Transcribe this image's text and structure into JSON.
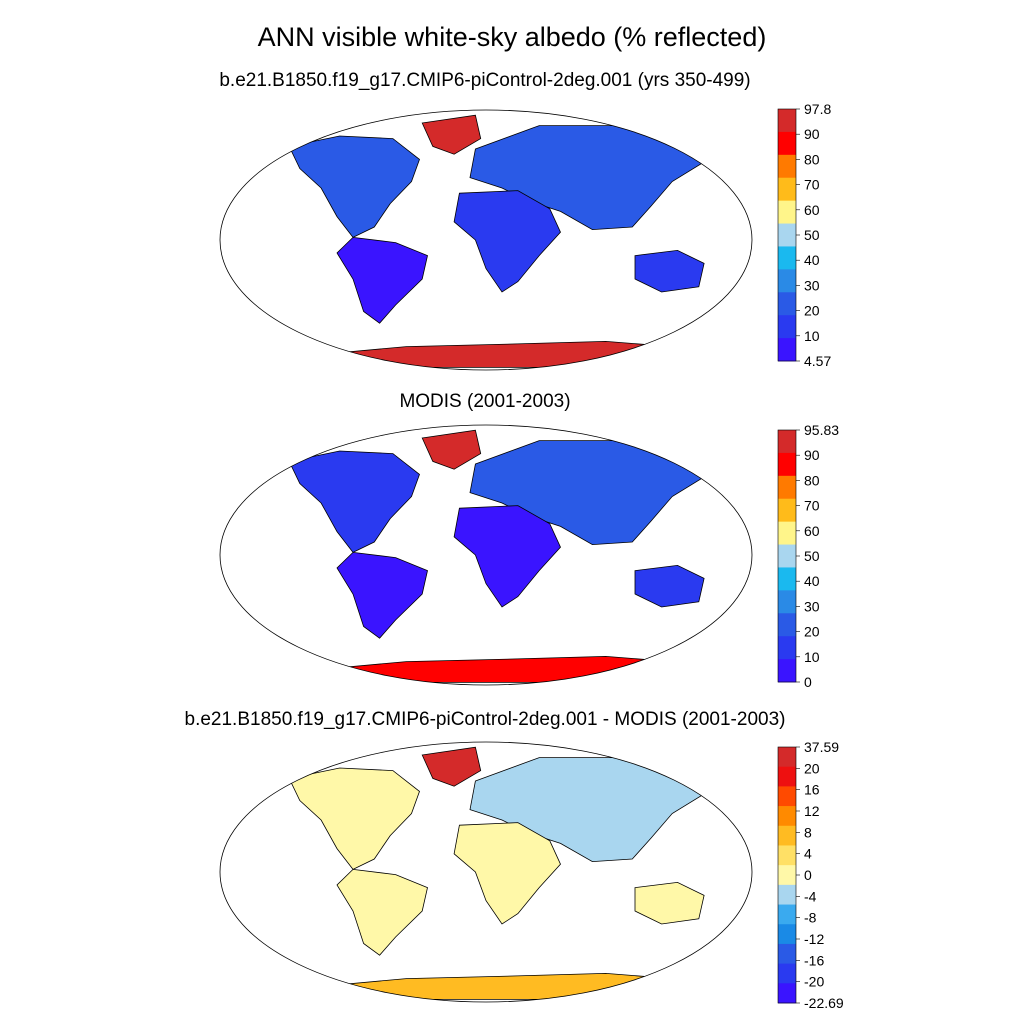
{
  "figure": {
    "title": "ANN visible white-sky albedo (% reflected)"
  },
  "panels": [
    {
      "id": "model",
      "title": "b.e21.B1850.f19_g17.CMIP6-piControl-2deg.001 (yrs 350-499)",
      "colorbar": {
        "labels": [
          "97.8",
          "90",
          "80",
          "70",
          "60",
          "50",
          "40",
          "30",
          "20",
          "10",
          "4.57"
        ],
        "colors": [
          "#d42a2a",
          "#ff0000",
          "#ff7a00",
          "#ffbb1a",
          "#fff58a",
          "#a9d6ef",
          "#1ab9ef",
          "#2a8ae6",
          "#2a5ae6",
          "#2a3af0",
          "#3a14ff"
        ]
      }
    },
    {
      "id": "obs",
      "title": "MODIS (2001-2003)",
      "colorbar": {
        "labels": [
          "95.83",
          "90",
          "80",
          "70",
          "60",
          "50",
          "40",
          "30",
          "20",
          "10",
          "0"
        ],
        "colors": [
          "#d42a2a",
          "#ff0000",
          "#ff7a00",
          "#ffbb1a",
          "#fff58a",
          "#a9d6ef",
          "#1ab9ef",
          "#2a8ae6",
          "#2a5ae6",
          "#2a3af0",
          "#3a14ff"
        ]
      }
    },
    {
      "id": "diff",
      "title": "b.e21.B1850.f19_g17.CMIP6-piControl-2deg.001 - MODIS (2001-2003)",
      "colorbar": {
        "labels": [
          "37.59",
          "20",
          "16",
          "12",
          "8",
          "4",
          "0",
          "-4",
          "-8",
          "-12",
          "-16",
          "-20",
          "-22.69"
        ],
        "colors": [
          "#d42a2a",
          "#ee1010",
          "#ff4a00",
          "#ff8a00",
          "#ffbb22",
          "#ffe066",
          "#fff8a8",
          "#a9d6ef",
          "#3aaaef",
          "#1a8ae6",
          "#2a5ae6",
          "#2a3af0",
          "#3a14ff"
        ]
      }
    }
  ]
}
